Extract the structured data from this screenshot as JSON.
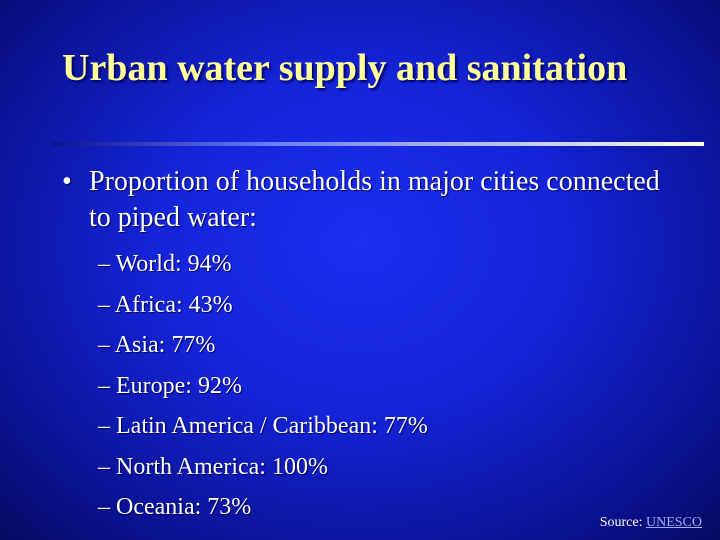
{
  "slide": {
    "title": "Urban water supply and sanitation",
    "bullet_symbol": "•",
    "bullet_text": "Proportion of households in major cities connected to piped water:",
    "items": [
      "– World: 94%",
      "– Africa: 43%",
      "– Asia: 77%",
      "– Europe: 92%",
      "– Latin America / Caribbean: 77%",
      "– North America: 100%",
      "– Oceania: 73%"
    ],
    "source_label": "Source:",
    "source_link": "UNESCO"
  },
  "colors": {
    "background": "#1424d8",
    "title": "#ffff99",
    "text": "#ffffff",
    "link": "#9ab0ff"
  }
}
